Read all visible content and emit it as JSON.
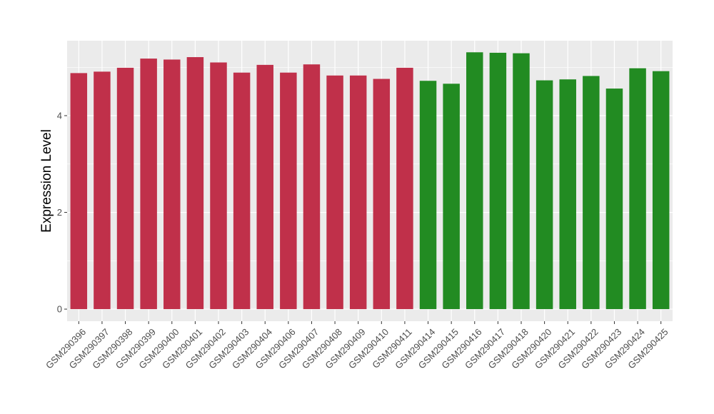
{
  "chart_data": {
    "type": "bar",
    "ylabel": "Expression Level",
    "xlabel": "",
    "ylim": [
      -0.25,
      5.55
    ],
    "yticks": [
      0,
      2,
      4
    ],
    "grid": true,
    "categories": [
      "GSM290396",
      "GSM290397",
      "GSM290398",
      "GSM290399",
      "GSM290400",
      "GSM290401",
      "GSM290402",
      "GSM290403",
      "GSM290404",
      "GSM290406",
      "GSM290407",
      "GSM290408",
      "GSM290409",
      "GSM290410",
      "GSM290411",
      "GSM290414",
      "GSM290415",
      "GSM290416",
      "GSM290417",
      "GSM290418",
      "GSM290420",
      "GSM290421",
      "GSM290422",
      "GSM290423",
      "GSM290424",
      "GSM290425"
    ],
    "values": [
      4.88,
      4.91,
      4.99,
      5.18,
      5.16,
      5.21,
      5.1,
      4.89,
      5.05,
      4.89,
      5.06,
      4.83,
      4.83,
      4.76,
      4.99,
      4.72,
      4.66,
      5.31,
      5.3,
      5.29,
      4.73,
      4.75,
      4.82,
      4.56,
      4.98,
      4.92
    ],
    "bar_colors": [
      "#c0304a",
      "#c0304a",
      "#c0304a",
      "#c0304a",
      "#c0304a",
      "#c0304a",
      "#c0304a",
      "#c0304a",
      "#c0304a",
      "#c0304a",
      "#c0304a",
      "#c0304a",
      "#c0304a",
      "#c0304a",
      "#c0304a",
      "#228b22",
      "#228b22",
      "#228b22",
      "#228b22",
      "#228b22",
      "#228b22",
      "#228b22",
      "#228b22",
      "#228b22",
      "#228b22",
      "#228b22"
    ],
    "panel_background": "#ebebeb",
    "grid_color": "#ffffff"
  }
}
